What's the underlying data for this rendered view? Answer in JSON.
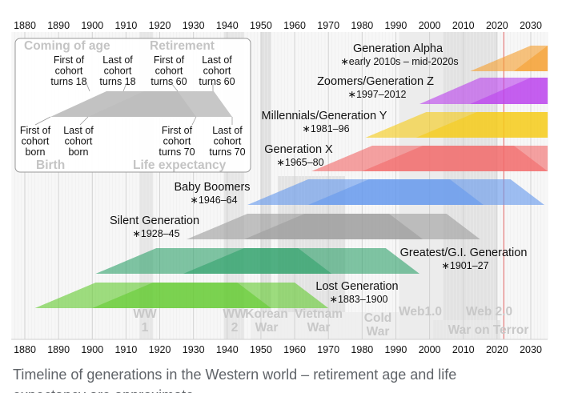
{
  "axis": {
    "ticks": [
      "1880",
      "1890",
      "1900",
      "1910",
      "1920",
      "1930",
      "1940",
      "1950",
      "1960",
      "1970",
      "1980",
      "1990",
      "2000",
      "2010",
      "2020",
      "2030"
    ],
    "start_year": 1876,
    "end_year": 2035,
    "current_year_marker": 2022
  },
  "legend": {
    "coming_of_age": "Coming of age",
    "retirement": "Retirement",
    "birth": "Birth",
    "life_expectancy": "Life expectancy",
    "first_cohort_18": [
      "First of",
      "cohort",
      "turns 18"
    ],
    "last_cohort_18": [
      "Last of",
      "cohort",
      "turns 18"
    ],
    "first_cohort_60": [
      "First of",
      "cohort",
      "turns 60"
    ],
    "last_cohort_60": [
      "Last of",
      "cohort",
      "turns 60"
    ],
    "first_cohort_born": [
      "First of",
      "cohort",
      "born"
    ],
    "last_cohort_born": [
      "Last of",
      "cohort",
      "born"
    ],
    "first_cohort_70": [
      "First of",
      "cohort",
      "turns 70"
    ],
    "last_cohort_70": [
      "Last of",
      "cohort",
      "turns 70"
    ]
  },
  "events": [
    {
      "id": "ww1",
      "line1": "WW",
      "line2": "1",
      "start": 1914,
      "end": 1918
    },
    {
      "id": "ww2",
      "line1": "WW",
      "line2": "2",
      "start": 1939,
      "end": 1945
    },
    {
      "id": "korean-war",
      "line1": "Korean",
      "line2": "War",
      "start": 1950,
      "end": 1953
    },
    {
      "id": "vietnam-war",
      "line1": "Vietnam",
      "line2": "War",
      "start": 1955,
      "end": 1975
    },
    {
      "id": "cold-war",
      "line1": "Cold",
      "line2": "War",
      "start": 1947,
      "end": 1991
    },
    {
      "id": "web1",
      "line1": "Web1.0",
      "line2": "",
      "start": 1991,
      "end": 2004
    },
    {
      "id": "web2",
      "line1": "Web 2.0",
      "line2": "",
      "start": 2004,
      "end": 2020
    },
    {
      "id": "war-on-terror",
      "line1": "War on Terror",
      "line2": "",
      "start": 2001,
      "end": 2021
    }
  ],
  "generations": [
    {
      "id": "lost",
      "name": "Lost Generation",
      "years": "∗1883–1900",
      "start": 1883,
      "end": 1900,
      "color": "#66cc33"
    },
    {
      "id": "greatest",
      "name": "Greatest/G.I. Generation",
      "years": "∗1901–27",
      "start": 1901,
      "end": 1927,
      "color": "#33a36e"
    },
    {
      "id": "silent",
      "name": "Silent Generation",
      "years": "∗1928–45",
      "start": 1928,
      "end": 1945,
      "color": "#9e9e9e"
    },
    {
      "id": "boomers",
      "name": "Baby Boomers",
      "years": "∗1946–64",
      "start": 1946,
      "end": 1964,
      "color": "#6699ee"
    },
    {
      "id": "genx",
      "name": "Generation X",
      "years": "∗1965–80",
      "start": 1965,
      "end": 1980,
      "color": "#f26a6a"
    },
    {
      "id": "millennials",
      "name": "Millennials/Generation Y",
      "years": "∗1981–96",
      "start": 1981,
      "end": 1996,
      "color": "#f5cc1a"
    },
    {
      "id": "genz",
      "name": "Zoomers/Generation Z",
      "years": "∗1997–2012",
      "start": 1997,
      "end": 2012,
      "color": "#bb44ee"
    },
    {
      "id": "alpha",
      "name": "Generation Alpha",
      "years": "∗early 2010s – mid-2020s",
      "start": 2012,
      "end": 2025,
      "color": "#f5a030"
    }
  ],
  "ages": {
    "adult": 18,
    "retire": 60,
    "life": 70
  },
  "caption": "Timeline of generations in the Western world – retirement age and life",
  "caption_line2": "expectancy are approximate"
}
